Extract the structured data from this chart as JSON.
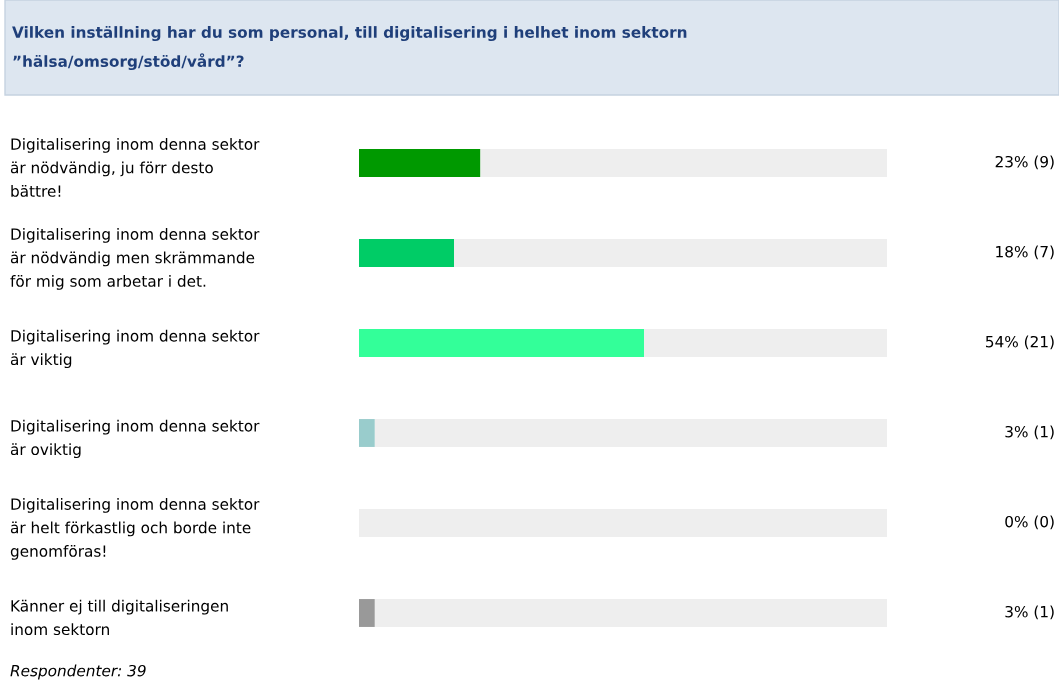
{
  "chart_data": {
    "type": "bar",
    "orientation": "horizontal",
    "title": "Vilken inställning har du som personal, till digitalisering i helhet inom sektorn\n”hälsa/omsorg/stöd/vård”?",
    "categories": [
      "Digitalisering inom denna sektor\när nödvändig, ju förr desto\nbättre!",
      "Digitalisering inom denna sektor\när nödvändig men skrämmande\nför mig som arbetar i det.",
      "Digitalisering inom denna sektor\när viktig",
      "Digitalisering inom denna sektor\när oviktig",
      "Digitalisering inom denna sektor\när helt förkastlig och borde inte\ngenomföras!",
      "Känner ej till digitaliseringen\ninom sektorn"
    ],
    "stacked": true,
    "series": [
      {
        "colors": [
          "#009900",
          "#00cc66",
          "#33ff99",
          "#99cccc",
          "#66cc99",
          "#999999"
        ],
        "values": [
          23,
          18,
          54,
          3,
          0,
          3
        ],
        "value_labels": [
          "23% (9)",
          "18% (7)",
          "54% (21)",
          "3% (1)",
          "0% (0)",
          "3% (1)"
        ]
      },
      {
        "color": "#eeeeee",
        "values": [
          77,
          82,
          46,
          97,
          100,
          97
        ]
      }
    ],
    "xlim": [
      0,
      100
    ],
    "tick_labels": "y",
    "grid": false,
    "legend": false,
    "annotations": [
      "Respondenter: 39"
    ]
  }
}
